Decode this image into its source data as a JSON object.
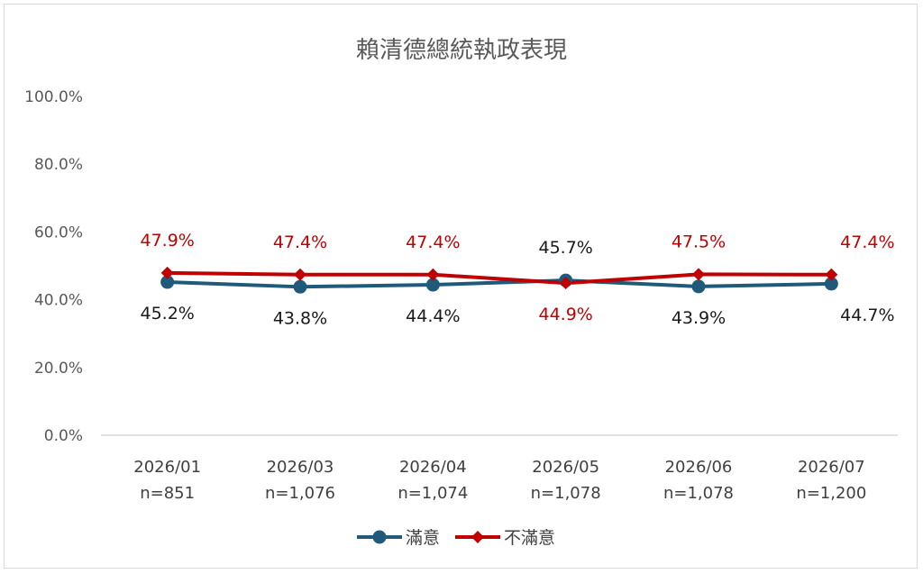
{
  "chart_data": {
    "type": "line",
    "title": "賴清德總統執政表現",
    "categories": [
      "2026/01",
      "2026/03",
      "2026/04",
      "2026/05",
      "2026/06",
      "2026/07"
    ],
    "sample_sizes": [
      "n=851",
      "n=1,076",
      "n=1,074",
      "n=1,078",
      "n=1,078",
      "n=1,200"
    ],
    "ylim": [
      0,
      100
    ],
    "yticks": [
      "0.0%",
      "20.0%",
      "40.0%",
      "60.0%",
      "80.0%",
      "100.0%"
    ],
    "grid": false,
    "legend_position": "bottom",
    "series": [
      {
        "name": "滿意",
        "color": "#1f5a7a",
        "marker": "circle",
        "values": [
          45.2,
          43.8,
          44.4,
          45.7,
          43.9,
          44.7
        ],
        "labels": [
          "45.2%",
          "43.8%",
          "44.4%",
          "45.7%",
          "43.9%",
          "44.7%"
        ]
      },
      {
        "name": "不滿意",
        "color": "#c00000",
        "marker": "diamond",
        "values": [
          47.9,
          47.4,
          47.4,
          44.9,
          47.5,
          47.4
        ],
        "labels": [
          "47.9%",
          "47.4%",
          "47.4%",
          "44.9%",
          "47.5%",
          "47.4%"
        ]
      }
    ]
  }
}
